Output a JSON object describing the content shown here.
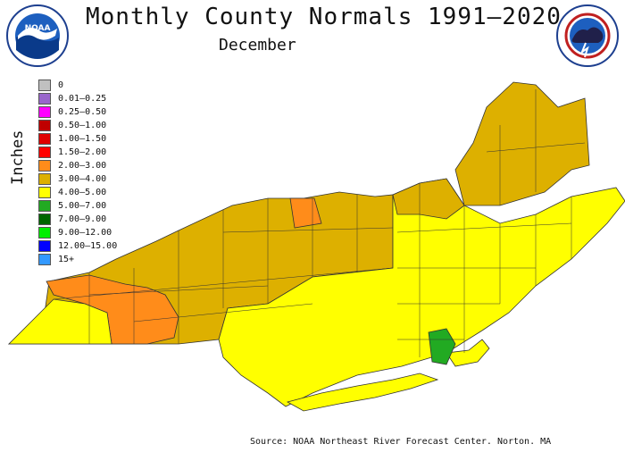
{
  "title": "Monthly County Normals 1991–2020",
  "subtitle": "December",
  "legend": {
    "title": "Inches",
    "items": [
      {
        "label": "0",
        "color": "#c0c0c0"
      },
      {
        "label": "0.01–0.25",
        "color": "#9966cc"
      },
      {
        "label": "0.25–0.50",
        "color": "#ff00ff"
      },
      {
        "label": "0.50–1.00",
        "color": "#c00000"
      },
      {
        "label": "1.00–1.50",
        "color": "#e00000"
      },
      {
        "label": "1.50–2.00",
        "color": "#ff0000"
      },
      {
        "label": "2.00–3.00",
        "color": "#ff8c1a"
      },
      {
        "label": "3.00–4.00",
        "color": "#ddb000"
      },
      {
        "label": "4.00–5.00",
        "color": "#ffff00"
      },
      {
        "label": "5.00–7.00",
        "color": "#22aa22"
      },
      {
        "label": "7.00–9.00",
        "color": "#006600"
      },
      {
        "label": "9.00–12.00",
        "color": "#00ee00"
      },
      {
        "label": "12.00–15.00",
        "color": "#0000ff"
      },
      {
        "label": "15+",
        "color": "#3399ff"
      }
    ]
  },
  "map": {
    "colors": {
      "low": "#ff8c1a",
      "mid": "#ddb000",
      "high": "#ffff00",
      "wet": "#22aa22"
    }
  },
  "logos": {
    "left": "noaa-logo",
    "right": "nws-logo"
  },
  "source": "Source: NOAA Northeast River Forecast Center. Norton. MA"
}
